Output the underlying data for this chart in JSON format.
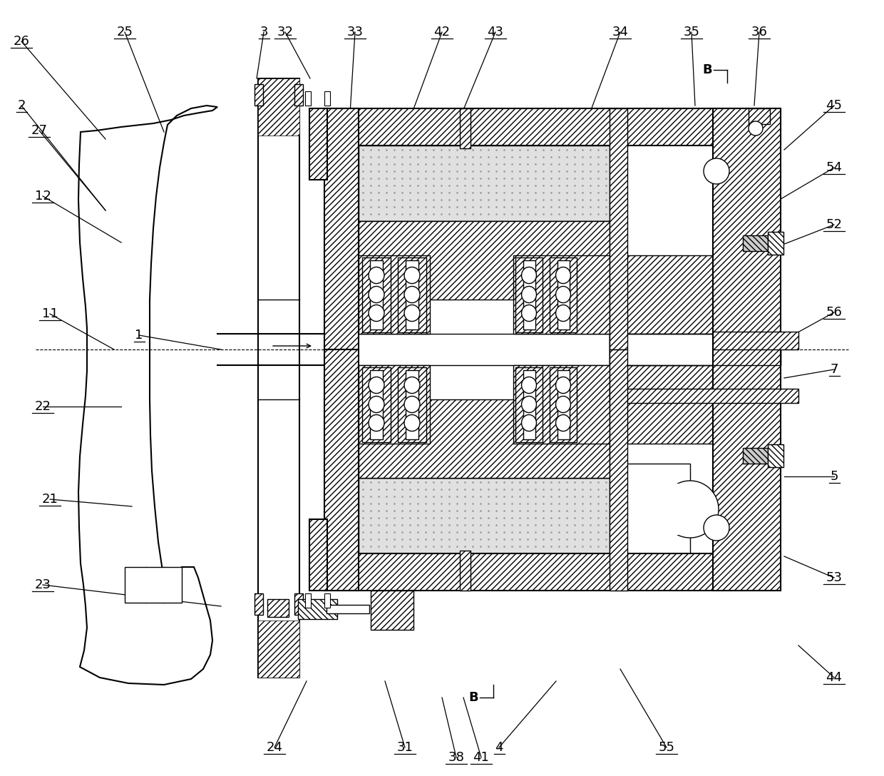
{
  "bg_color": "#ffffff",
  "line_color": "#000000",
  "figsize": [
    12.4,
    10.88
  ],
  "dpi": 100,
  "labels_data": [
    [
      "26",
      30,
      58,
      148,
      195
    ],
    [
      "2",
      30,
      148,
      148,
      295
    ],
    [
      "27",
      55,
      183,
      148,
      295
    ],
    [
      "25",
      175,
      45,
      230,
      185
    ],
    [
      "3",
      370,
      45,
      360,
      110
    ],
    [
      "12",
      60,
      275,
      170,
      340
    ],
    [
      "1",
      195,
      470,
      310,
      490
    ],
    [
      "11",
      70,
      440,
      160,
      490
    ],
    [
      "22",
      60,
      570,
      170,
      570
    ],
    [
      "21",
      70,
      700,
      185,
      710
    ],
    [
      "23",
      60,
      820,
      310,
      850
    ],
    [
      "24",
      385,
      1048,
      430,
      955
    ],
    [
      "32",
      400,
      45,
      435,
      110
    ],
    [
      "33",
      498,
      45,
      490,
      175
    ],
    [
      "42",
      620,
      45,
      570,
      180
    ],
    [
      "43",
      695,
      45,
      640,
      178
    ],
    [
      "34",
      870,
      45,
      820,
      178
    ],
    [
      "35",
      970,
      45,
      975,
      148
    ],
    [
      "36",
      1065,
      45,
      1058,
      148
    ],
    [
      "45",
      1170,
      148,
      1100,
      210
    ],
    [
      "54",
      1170,
      235,
      1085,
      285
    ],
    [
      "52",
      1170,
      315,
      1085,
      348
    ],
    [
      "56",
      1170,
      438,
      1090,
      482
    ],
    [
      "7",
      1170,
      518,
      1100,
      530
    ],
    [
      "5",
      1170,
      668,
      1100,
      668
    ],
    [
      "53",
      1170,
      810,
      1100,
      780
    ],
    [
      "4",
      700,
      1048,
      780,
      955
    ],
    [
      "55",
      935,
      1048,
      870,
      938
    ],
    [
      "44",
      1170,
      950,
      1120,
      905
    ],
    [
      "41",
      675,
      1062,
      650,
      978
    ],
    [
      "38",
      640,
      1062,
      620,
      978
    ],
    [
      "31",
      568,
      1048,
      540,
      955
    ]
  ]
}
